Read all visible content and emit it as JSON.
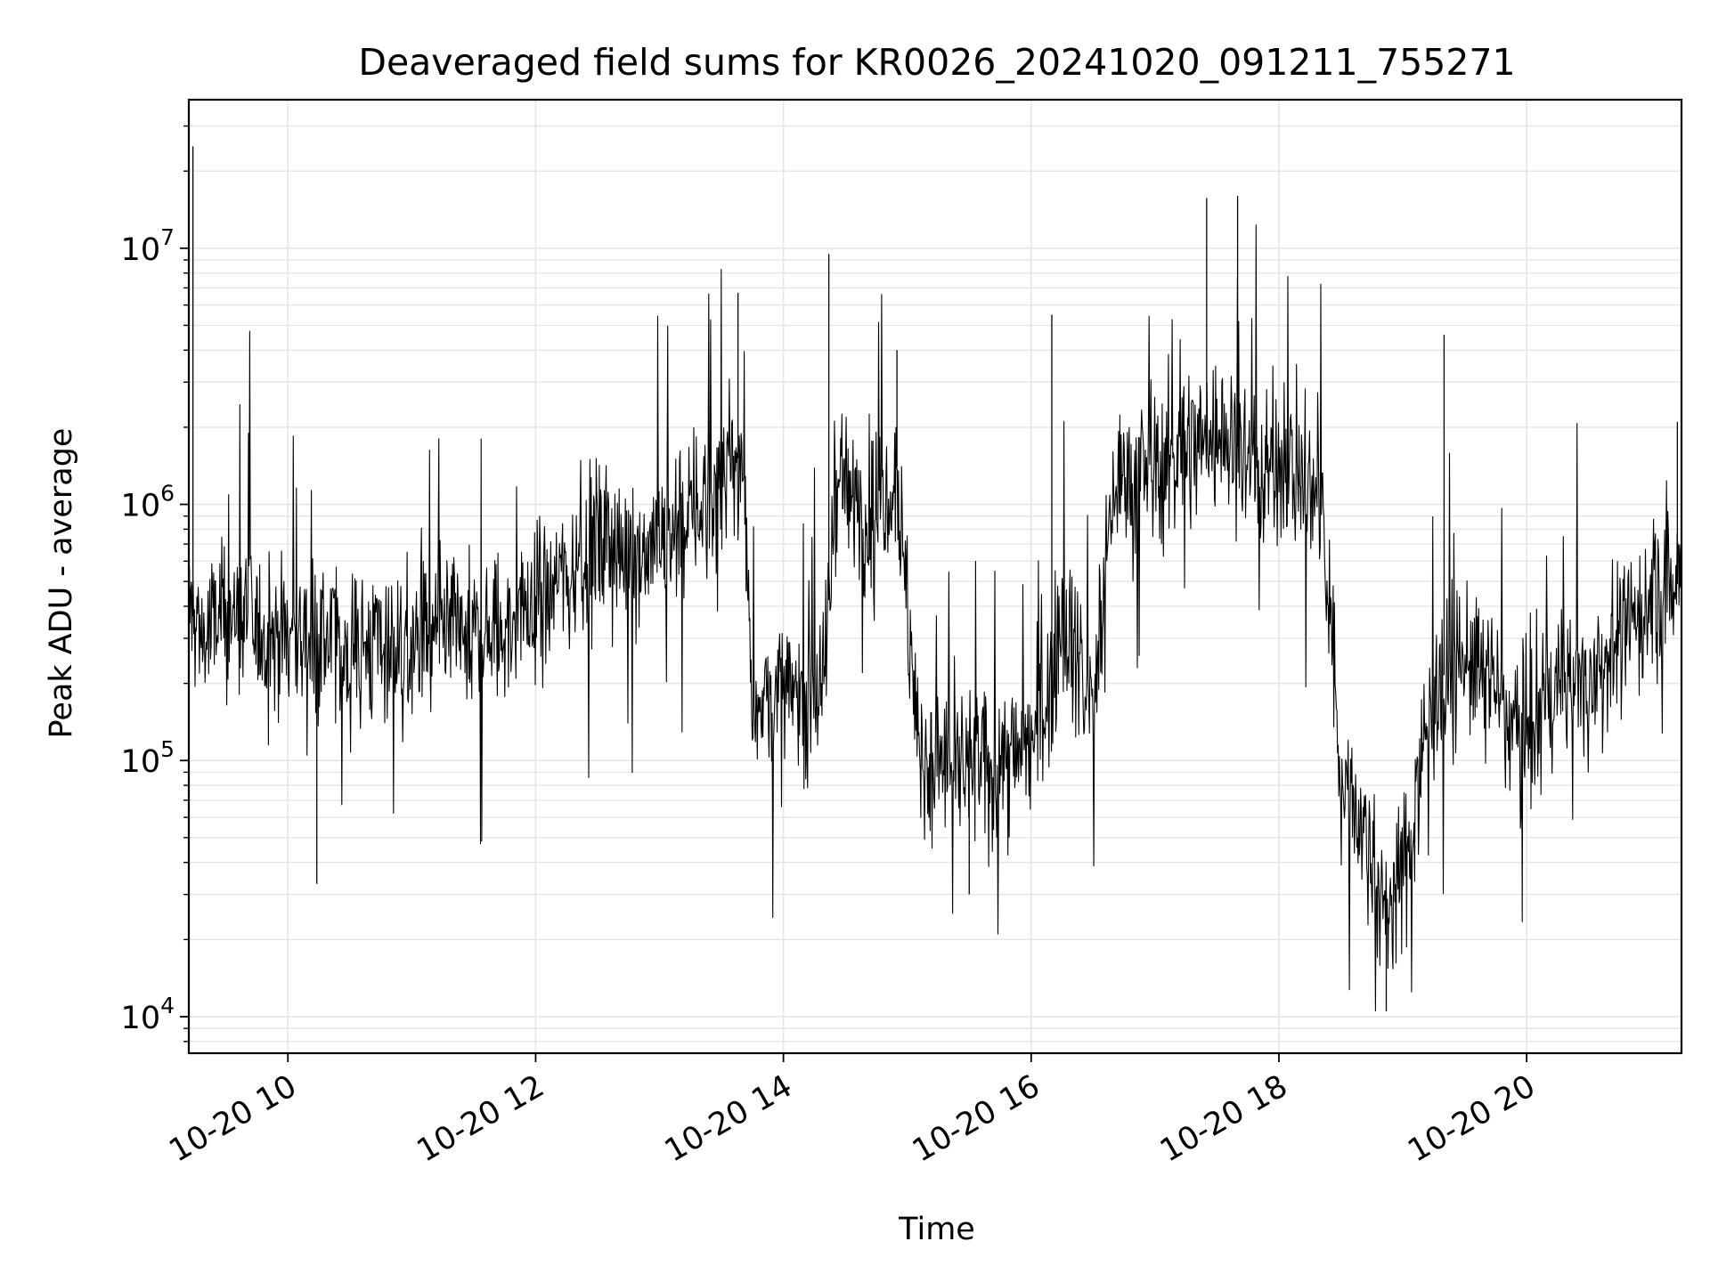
{
  "chart_data": {
    "type": "line",
    "title": "Deaveraged field sums for KR0026_20241020_091211_755271",
    "xlabel": "Time",
    "ylabel": "Peak ADU - average",
    "yscale": "log",
    "ylim": [
      7200,
      38000000
    ],
    "xlim": [
      "2024-10-20 09:12",
      "2024-10-20 21:15"
    ],
    "grid": true,
    "x_ticks": [
      {
        "label": "10-20 10",
        "value": "2024-10-20 10:00"
      },
      {
        "label": "10-20 12",
        "value": "2024-10-20 12:00"
      },
      {
        "label": "10-20 14",
        "value": "2024-10-20 14:00"
      },
      {
        "label": "10-20 16",
        "value": "2024-10-20 16:00"
      },
      {
        "label": "10-20 18",
        "value": "2024-10-20 18:00"
      },
      {
        "label": "10-20 20",
        "value": "2024-10-20 20:00"
      }
    ],
    "y_ticks": [
      {
        "base": "10",
        "exp": "4",
        "value": 10000
      },
      {
        "base": "10",
        "exp": "5",
        "value": 100000
      },
      {
        "base": "10",
        "exp": "6",
        "value": 1000000
      },
      {
        "base": "10",
        "exp": "7",
        "value": 10000000
      }
    ],
    "line_color": "#000000",
    "grid_color": "#e5e5e5",
    "series": [
      {
        "x": [
          "2024-10-20 09:12",
          "2024-10-20 09:15",
          "2024-10-20 09:20",
          "2024-10-20 09:30",
          "2024-10-20 09:45",
          "2024-10-20 10:00",
          "2024-10-20 10:15",
          "2024-10-20 10:30",
          "2024-10-20 10:45",
          "2024-10-20 11:00",
          "2024-10-20 11:15",
          "2024-10-20 11:30",
          "2024-10-20 11:45",
          "2024-10-20 12:00",
          "2024-10-20 12:15",
          "2024-10-20 12:30",
          "2024-10-20 12:45",
          "2024-10-20 13:00",
          "2024-10-20 13:15",
          "2024-10-20 13:30",
          "2024-10-20 13:40",
          "2024-10-20 13:45",
          "2024-10-20 14:00",
          "2024-10-20 14:15",
          "2024-10-20 14:20",
          "2024-10-20 14:25",
          "2024-10-20 14:40",
          "2024-10-20 14:55",
          "2024-10-20 15:05",
          "2024-10-20 15:10",
          "2024-10-20 15:25",
          "2024-10-20 15:40",
          "2024-10-20 15:55",
          "2024-10-20 16:05",
          "2024-10-20 16:15",
          "2024-10-20 16:30",
          "2024-10-20 16:40",
          "2024-10-20 16:50",
          "2024-10-20 17:05",
          "2024-10-20 17:20",
          "2024-10-20 17:35",
          "2024-10-20 17:50",
          "2024-10-20 18:05",
          "2024-10-20 18:20",
          "2024-10-20 18:30",
          "2024-10-20 18:40",
          "2024-10-20 18:50",
          "2024-10-20 19:00",
          "2024-10-20 19:15",
          "2024-10-20 19:30",
          "2024-10-20 19:45",
          "2024-10-20 20:00",
          "2024-10-20 20:15",
          "2024-10-20 20:30",
          "2024-10-20 20:45",
          "2024-10-20 21:00",
          "2024-10-20 21:15"
        ],
        "y": [
          400000,
          350000,
          300000,
          380000,
          320000,
          310000,
          300000,
          270000,
          290000,
          270000,
          300000,
          310000,
          320000,
          420000,
          550000,
          700000,
          650000,
          750000,
          900000,
          1200000,
          1600000,
          180000,
          170000,
          190000,
          200000,
          1300000,
          900000,
          1400000,
          110000,
          100000,
          95000,
          90000,
          110000,
          130000,
          400000,
          160000,
          1200000,
          1300000,
          1400000,
          1800000,
          1900000,
          1300000,
          1500000,
          1000000,
          90000,
          60000,
          25000,
          35000,
          200000,
          250000,
          190000,
          110000,
          200000,
          200000,
          300000,
          420000,
          500000
        ]
      }
    ],
    "spikes": [
      {
        "x": "2024-10-20 09:14",
        "y": 25000000
      },
      {
        "x": "2024-10-20 14:22",
        "y": 9500000
      },
      {
        "x": "2024-10-20 13:38",
        "y": 6700000
      },
      {
        "x": "2024-10-20 17:40",
        "y": 16000000
      },
      {
        "x": "2024-10-20 17:25",
        "y": 15700000
      },
      {
        "x": "2024-10-20 19:20",
        "y": 4600000
      },
      {
        "x": "2024-10-20 16:10",
        "y": 5500000
      },
      {
        "x": "2024-10-20 18:52",
        "y": 10500
      },
      {
        "x": "2024-10-20 10:14",
        "y": 33000
      },
      {
        "x": "2024-10-20 15:30",
        "y": 30000
      },
      {
        "x": "2024-10-20 21:13",
        "y": 2100000
      },
      {
        "x": "2024-10-20 14:55",
        "y": 4000000
      }
    ]
  }
}
